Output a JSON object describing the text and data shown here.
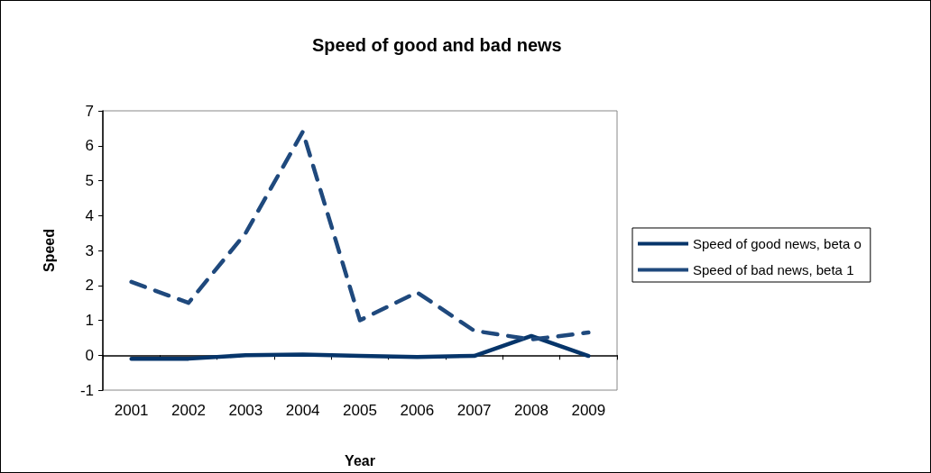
{
  "chart_data": {
    "type": "line",
    "title": "Speed of good and bad news",
    "xlabel": "Year",
    "ylabel": "Speed",
    "categories": [
      "2001",
      "2002",
      "2003",
      "2004",
      "2005",
      "2006",
      "2007",
      "2008",
      "2009"
    ],
    "series": [
      {
        "name": "Speed of good news, beta o",
        "color": "#06356a",
        "line_style": "solid",
        "values": [
          -0.1,
          -0.1,
          0,
          0.02,
          -0.02,
          -0.05,
          -0.02,
          0.55,
          -0.02
        ]
      },
      {
        "name": "Speed of bad news, beta 1",
        "color": "#1f497d",
        "line_style": "dashed",
        "values": [
          2.1,
          1.5,
          3.5,
          6.4,
          1.0,
          1.8,
          0.7,
          0.45,
          0.65
        ]
      }
    ],
    "ylim": [
      -1,
      7
    ],
    "yticks": [
      -1,
      0,
      1,
      2,
      3,
      4,
      5,
      6,
      7
    ],
    "legend": "right",
    "marker": "none"
  }
}
